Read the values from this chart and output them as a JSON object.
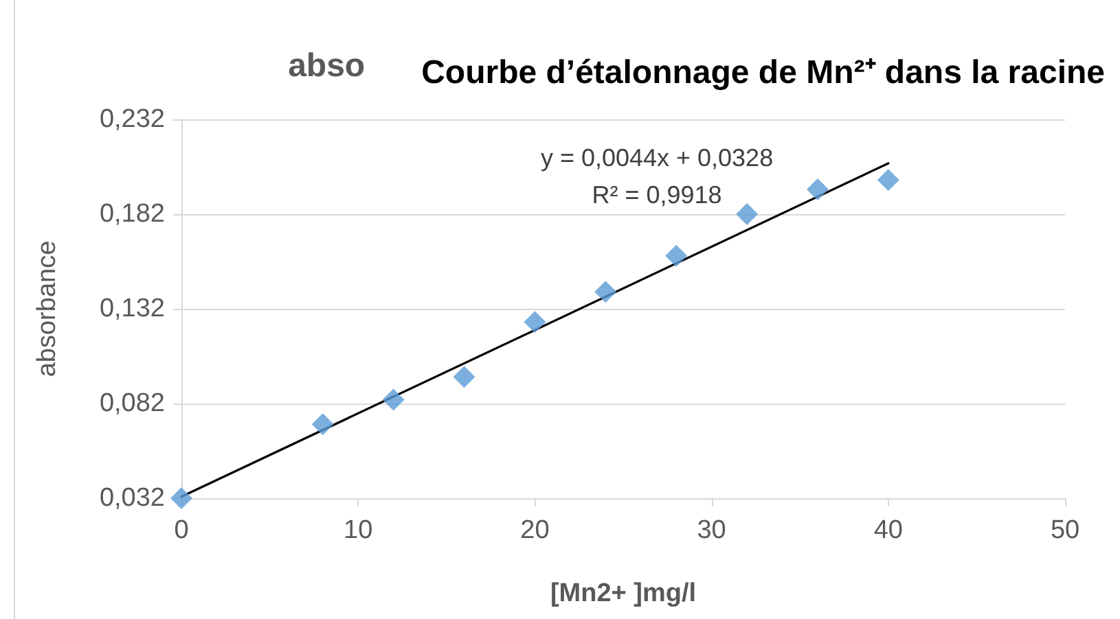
{
  "chart_data": {
    "type": "scatter",
    "title": "Courbe d’étalonnage de Mn²⁺ dans la racine",
    "xlabel": "[Mn2+ ]mg/l",
    "ylabel": "absorbance",
    "x": [
      0,
      8,
      12,
      16,
      20,
      24,
      28,
      32,
      36,
      40
    ],
    "series": [
      {
        "color": "#5b9bd5",
        "values": [
          0.032,
          0.071,
          0.084,
          0.096,
          0.125,
          0.141,
          0.16,
          0.182,
          0.195,
          0.2
        ]
      },
      {
        "type": "line",
        "marker": "none",
        "color": "#000000",
        "x": [
          0,
          40
        ],
        "values": [
          0.0328,
          0.2088
        ]
      }
    ],
    "marker": "diamond",
    "line_style": "solid",
    "xlim": [
      0,
      50
    ],
    "xticks": [
      0,
      10,
      20,
      30,
      40,
      50
    ],
    "ylim": [
      0.032,
      0.232
    ],
    "yticks": [
      {
        "value": 0.032,
        "label": "0,032"
      },
      {
        "value": 0.082,
        "label": "0,082"
      },
      {
        "value": 0.132,
        "label": "0,132"
      },
      {
        "value": 0.182,
        "label": "0,182"
      },
      {
        "value": 0.232,
        "label": "0,232"
      }
    ],
    "grid": "y",
    "annotations": [
      "abso",
      "y = 0,0044x + 0,0328",
      "R² = 0,9918"
    ]
  }
}
